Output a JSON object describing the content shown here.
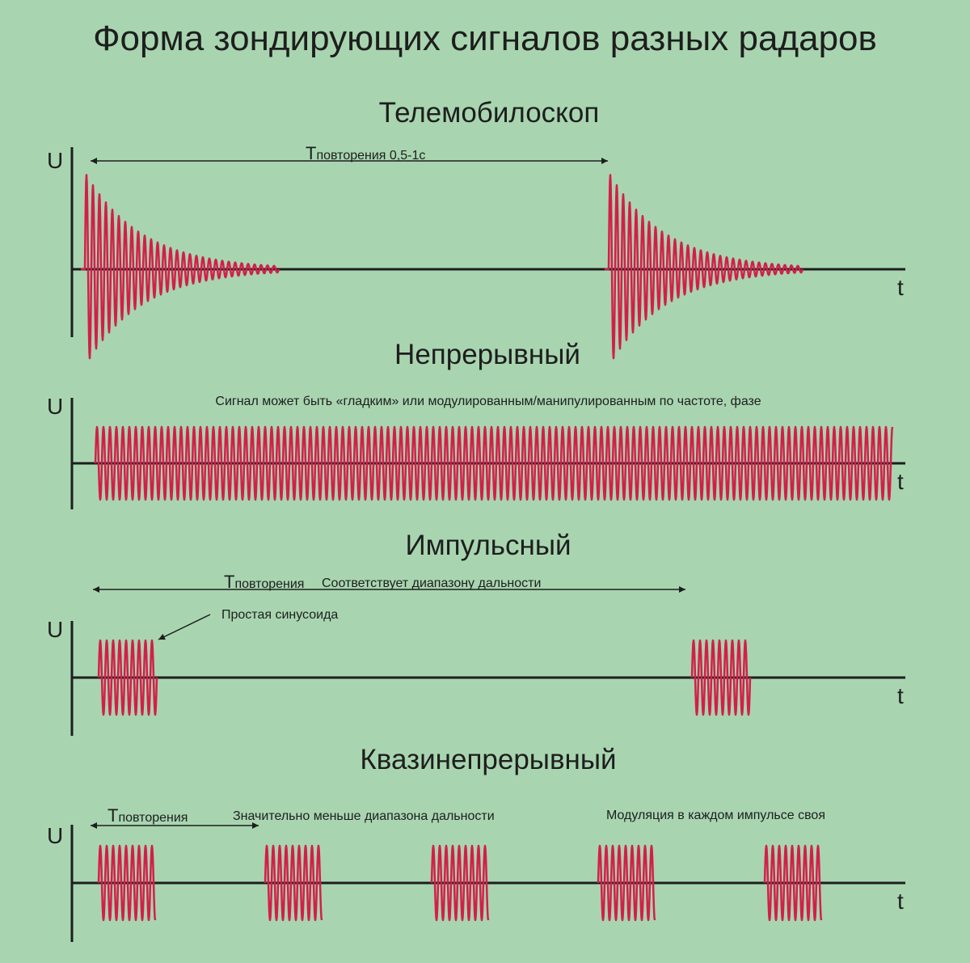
{
  "title": "Форма зондирующих сигналов разных радаров",
  "colors": {
    "background": "#a8d5b0",
    "signal": "#d41e4a",
    "axis": "#1e1e1e"
  },
  "axis_labels": {
    "u": "U",
    "t": "t"
  },
  "sections": {
    "telemobiloscope": {
      "title": "Телемобилоскоп",
      "period_T": "T",
      "period_sub": "повторения 0,5-1с"
    },
    "continuous": {
      "title": "Непрерывный",
      "note": "Сигнал может быть «гладким» или модулированным/манипулированным по частоте, фазе"
    },
    "pulsed": {
      "title": "Импульсный",
      "period_T": "T",
      "period_sub": "повторения",
      "range_note": "Соответствует диапазону дальности",
      "sine_note": "Простая синусоида"
    },
    "quasi": {
      "title": "Квазинепрерывный",
      "period_T": "T",
      "period_sub": "повторения",
      "range_note": "Значительно меньше диапазона дальности",
      "mod_note": "Модуляция в каждом импульсе своя"
    }
  }
}
